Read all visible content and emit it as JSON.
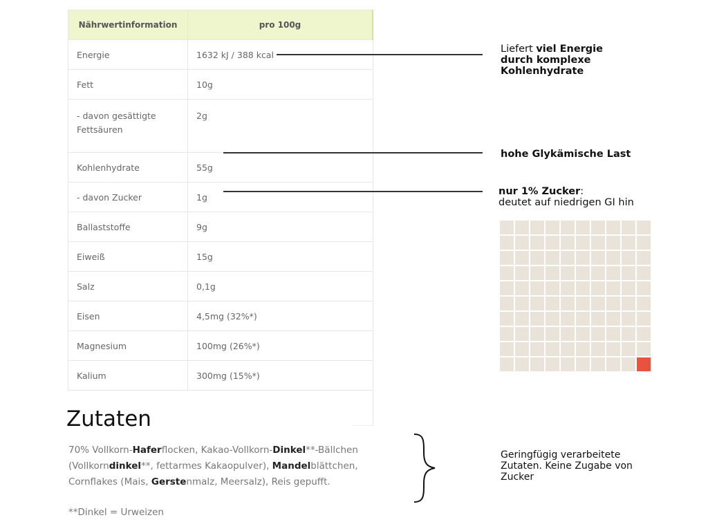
{
  "table": {
    "headers": [
      "Nährwertinformation",
      "pro 100g"
    ],
    "rows": [
      [
        "Energie",
        "1632 kJ / 388 kcal"
      ],
      [
        "Fett",
        "10g"
      ],
      [
        "- davon gesättigte Fettsäuren",
        "2g"
      ],
      [
        "Kohlenhydrate",
        "55g"
      ],
      [
        "- davon Zucker",
        "1g"
      ],
      [
        "Ballaststoffe",
        "9g"
      ],
      [
        "Eiweiß",
        "15g"
      ],
      [
        "Salz",
        "0,1g"
      ],
      [
        "Eisen",
        "4,5mg (32%*)"
      ],
      [
        "Magnesium",
        "100mg (26%*)"
      ],
      [
        "Kalium",
        "300mg (15%*)"
      ]
    ]
  },
  "notes": {
    "energy": {
      "pre": "Liefert ",
      "bold": "viel Energie durch komplexe Kohlenhydrate"
    },
    "carbs": {
      "bold": "hohe Glykämische Last"
    },
    "sugar": {
      "bold": "nur 1% Zucker",
      "post": ":",
      "line2": "deutet auf niedrigen GI hin"
    },
    "ingredients": "Geringfügig verarbeitete Zutaten. Keine Zugabe von Zucker"
  },
  "waffle": {
    "total": 100,
    "highlighted": 1,
    "colors": {
      "base": "#e9e3da",
      "highlight": "#e8523f"
    }
  },
  "ingredients": {
    "title": "Zutaten",
    "segments": [
      [
        "70% Vollkorn-",
        0
      ],
      [
        "Hafer",
        1
      ],
      [
        "flocken, Kakao-Vollkorn-",
        0
      ],
      [
        "Dinkel",
        1
      ],
      [
        "**-Bällchen (Vollkorn",
        0
      ],
      [
        "dinkel",
        1
      ],
      [
        "**, fettarmes Kakaopulver), ",
        0
      ],
      [
        "Mandel",
        1
      ],
      [
        "blättchen, Cornflakes (Mais, ",
        0
      ],
      [
        "Gerste",
        1
      ],
      [
        "nmalz, Meersalz), Reis gepufft.",
        0
      ]
    ],
    "footnote": "**Dinkel = Urweizen"
  }
}
